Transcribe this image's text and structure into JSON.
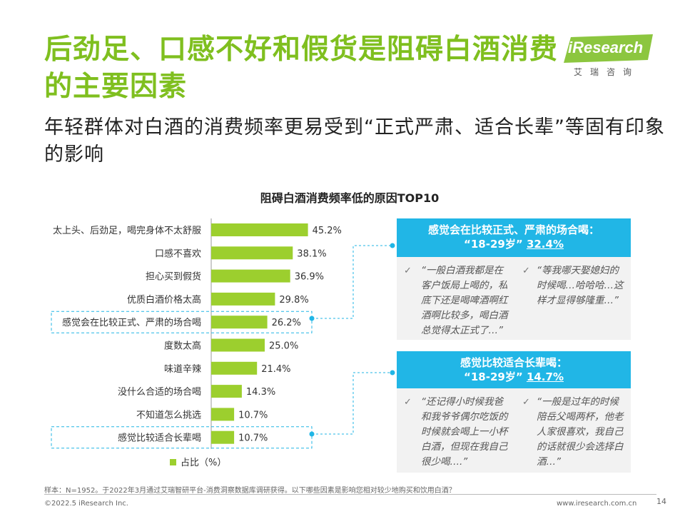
{
  "title": "后劲足、口感不好和假货是阻碍白酒消费的主要因素",
  "subtitle": "年轻群体对白酒的消费频率更易受到“正式严肃、适合长辈”等固有印象的影响",
  "logo": {
    "text": "iResearch",
    "sub": "艾瑞咨询"
  },
  "chart_data": {
    "type": "bar",
    "title": "阻碍白酒消费频率低的原因TOP10",
    "categories": [
      "太上头、后劲足，喝完身体不太舒服",
      "口感不喜欢",
      "担心买到假货",
      "优质白酒价格太高",
      "感觉会在比较正式、严肃的场合喝",
      "度数太高",
      "味道辛辣",
      "没什么合适的场合喝",
      "不知道怎么挑选",
      "感觉比较适合长辈喝"
    ],
    "values": [
      45.2,
      38.1,
      36.9,
      29.8,
      26.2,
      25.0,
      21.4,
      14.3,
      10.7,
      10.7
    ],
    "value_labels": [
      "45.2%",
      "38.1%",
      "36.9%",
      "29.8%",
      "26.2%",
      "25.0%",
      "21.4%",
      "14.3%",
      "10.7%",
      "10.7%"
    ],
    "series": [
      {
        "name": "占比（%）",
        "values": [
          45.2,
          38.1,
          36.9,
          29.8,
          26.2,
          25.0,
          21.4,
          14.3,
          10.7,
          10.7
        ]
      }
    ],
    "highlighted": [
      "感觉会在比较正式、严肃的场合喝",
      "感觉比较适合长辈喝"
    ],
    "color": "#9ccf2e",
    "legend_position": "bottom-left"
  },
  "legend_label": "占比（%）",
  "box1": {
    "header_line1": "感觉会在比较正式、严肃的场合喝：",
    "header_age": "“18-29岁”",
    "header_pct": "32.4%",
    "quote_left": "“一般白酒我都是在客户饭局上喝的，私底下还是喝啤酒啊红酒啊比较多，喝白酒总觉得太正式了…”",
    "quote_right": "“等我哪天娶媳妇的时候喝…哈哈哈…这样才显得够隆重…”"
  },
  "box2": {
    "header_line1": "感觉比较适合长辈喝：",
    "header_age": "“18-29岁”",
    "header_pct": "14.7%",
    "quote_left": "“还记得小时候我爸和我爷爷偶尔吃饭的时候就会喝上一小杯白酒，但现在我自己很少喝….”",
    "quote_right": "“一般是过年的时候陪岳父喝两杯，他老人家很喜欢，我自己的话就很少会选择白酒…”"
  },
  "check_mark": "✓",
  "footnote": "样本：N=1952。于2022年3月通过艾瑞智研平台-消费洞察数据库调研获得。以下哪些因素是影响您相对较少地购买和饮用白酒？",
  "footer_left": "©2022.5 iResearch Inc.",
  "footer_right": "www.iresearch.com.cn",
  "page_number": "14"
}
